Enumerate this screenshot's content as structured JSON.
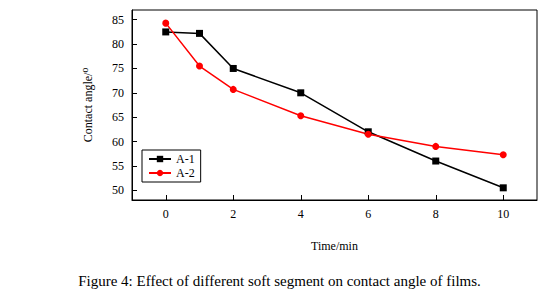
{
  "chart_data": {
    "type": "line",
    "title": "Figure 4: Effect of different soft segment on contact angle of films.",
    "x_label": "Time/min",
    "y_label": "Contact angle/⁰",
    "x": [
      0,
      1,
      2,
      4,
      6,
      8,
      10
    ],
    "series": [
      {
        "name": "A-1",
        "color": "#000000",
        "marker": "square",
        "line_style": "solid",
        "values": [
          82.5,
          82.2,
          75,
          70,
          62,
          56,
          50.5
        ]
      },
      {
        "name": "A-2",
        "color": "#ff0000",
        "marker": "circle",
        "line_style": "solid",
        "values": [
          84.3,
          75.5,
          70.7,
          65.3,
          61.5,
          59,
          57.3
        ]
      }
    ],
    "xlim": [
      -1,
      11
    ],
    "xticks": [
      0,
      2,
      4,
      6,
      8,
      10
    ],
    "ylim": [
      48,
      87
    ],
    "yticks": [
      50,
      55,
      60,
      65,
      70,
      75,
      80,
      85
    ],
    "grid": false,
    "legend": "lower left"
  }
}
